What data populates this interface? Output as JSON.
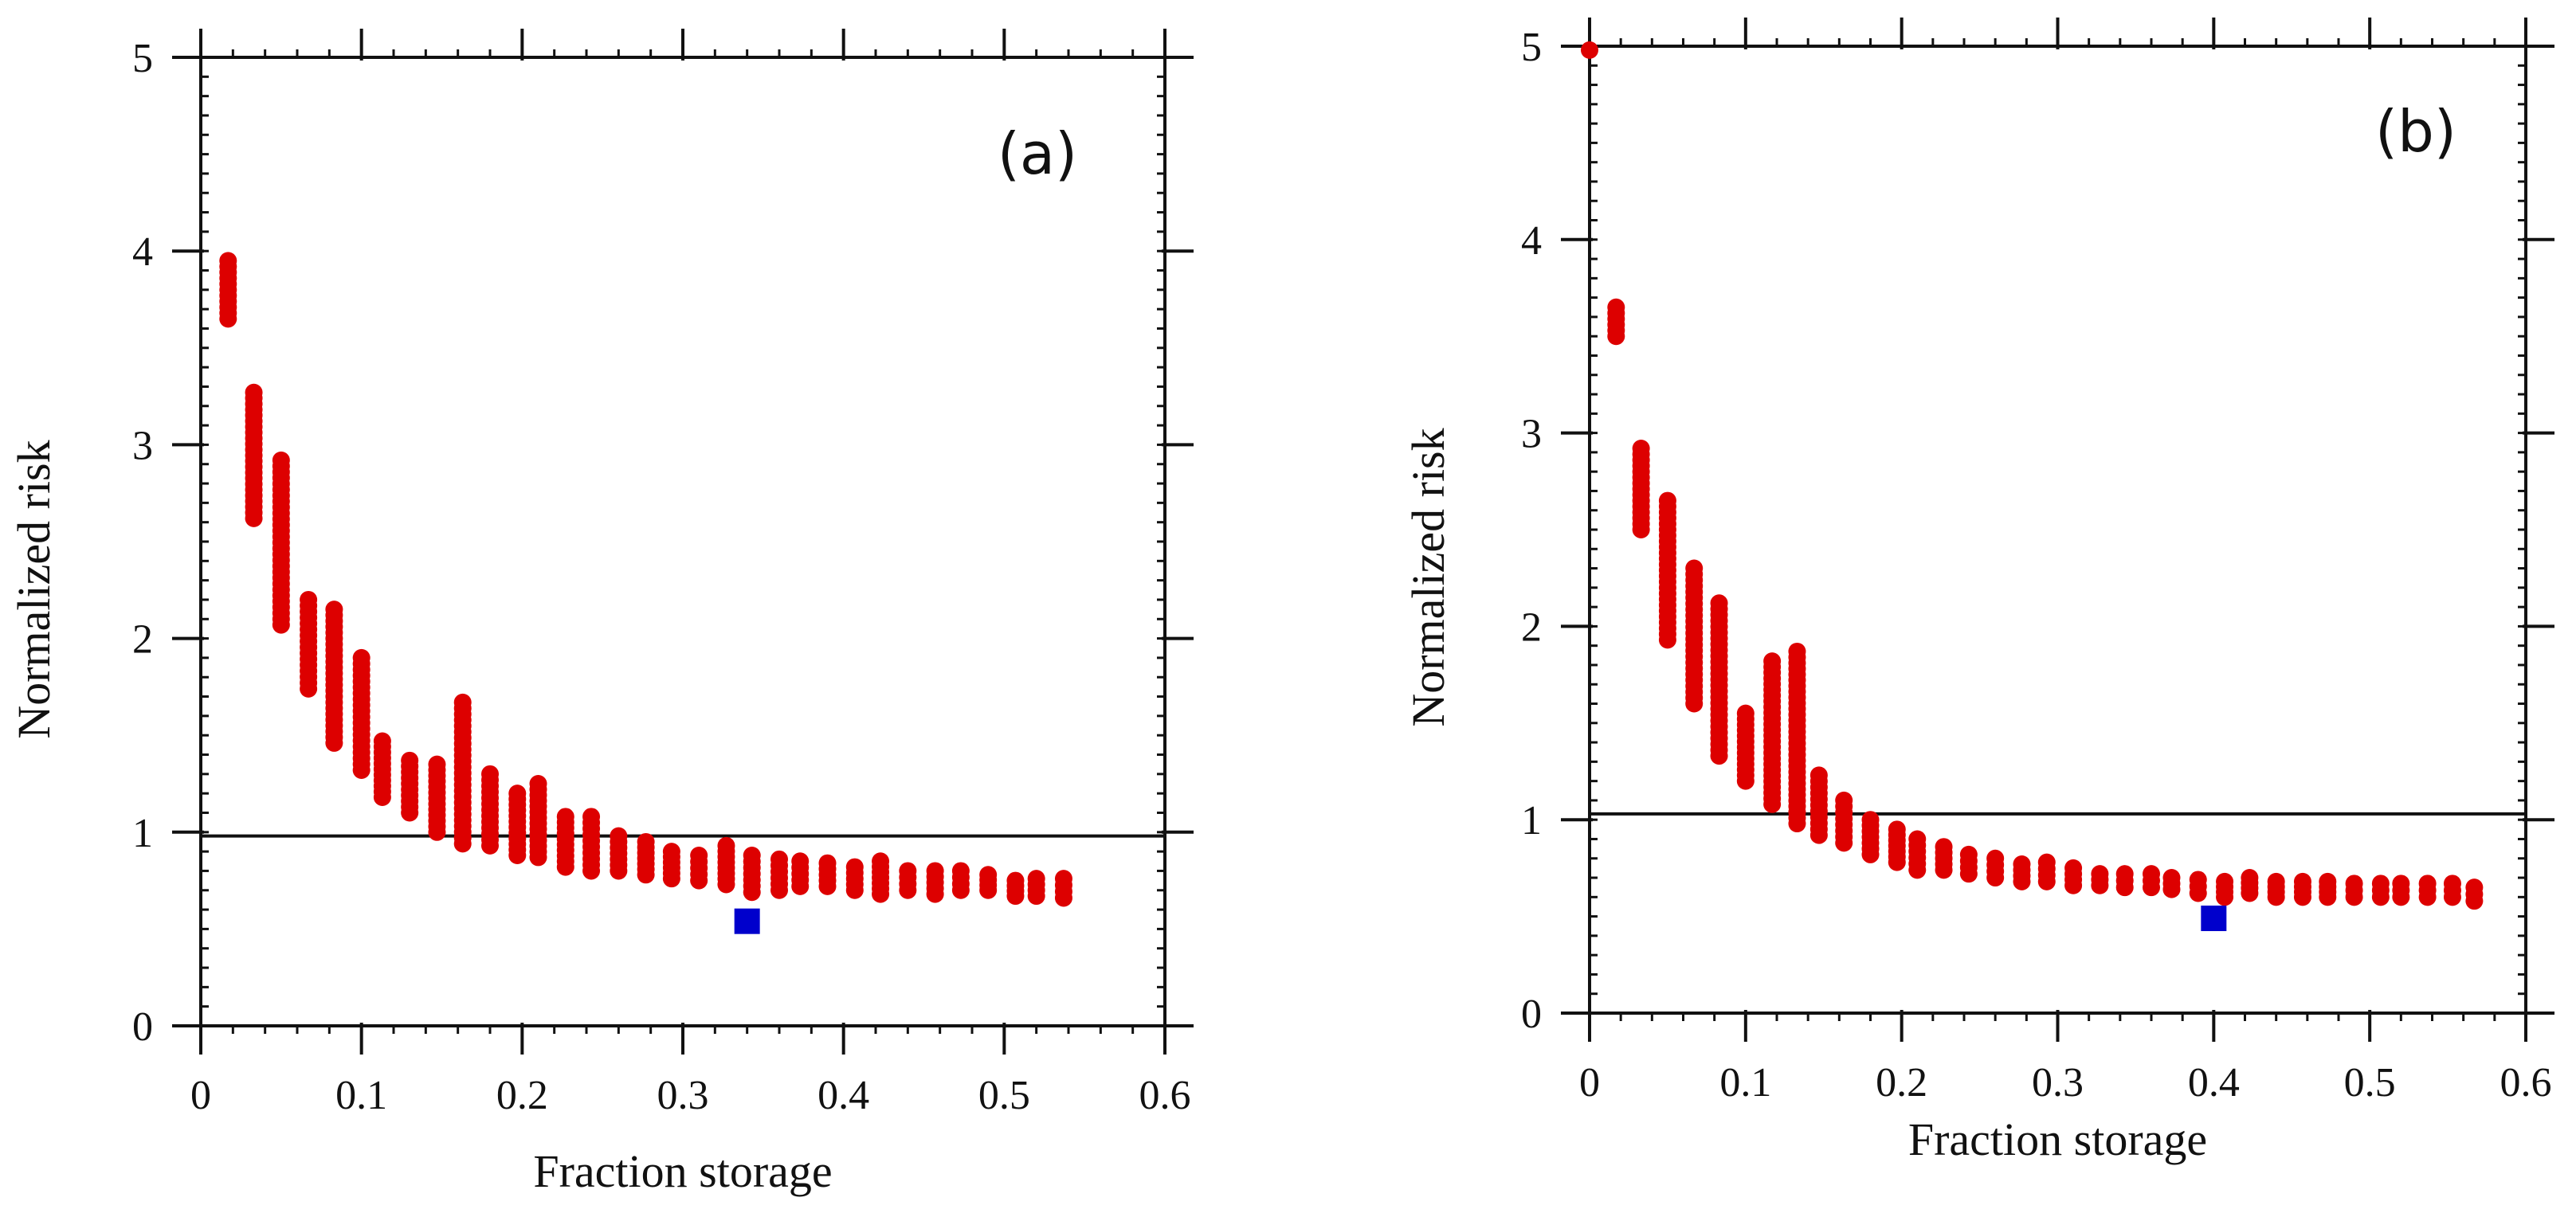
{
  "chart_data": [
    {
      "type": "scatter",
      "panel_label": "(a)",
      "xlabel": "Fraction storage",
      "ylabel": "Normalized risk",
      "xlim": [
        0,
        0.6
      ],
      "ylim": [
        0,
        5
      ],
      "xticks": [
        "0",
        "0.1",
        "0.2",
        "0.3",
        "0.4",
        "0.5",
        "0.6"
      ],
      "yticks": [
        "0",
        "1",
        "2",
        "3",
        "4",
        "5"
      ],
      "reference_line": 0.98,
      "grid": false,
      "series": [
        {
          "color": "#dd0000",
          "marker": "circle",
          "clusters": [
            {
              "x": 0.017,
              "ymin": 3.65,
              "ymax": 3.95
            },
            {
              "x": 0.033,
              "ymin": 2.62,
              "ymax": 3.27
            },
            {
              "x": 0.05,
              "ymin": 2.07,
              "ymax": 2.92
            },
            {
              "x": 0.067,
              "ymin": 1.74,
              "ymax": 2.2
            },
            {
              "x": 0.083,
              "ymin": 1.46,
              "ymax": 2.15
            },
            {
              "x": 0.1,
              "ymin": 1.32,
              "ymax": 1.9
            },
            {
              "x": 0.113,
              "ymin": 1.18,
              "ymax": 1.47
            },
            {
              "x": 0.13,
              "ymin": 1.1,
              "ymax": 1.37
            },
            {
              "x": 0.147,
              "ymin": 1.0,
              "ymax": 1.35
            },
            {
              "x": 0.163,
              "ymin": 0.94,
              "ymax": 1.67
            },
            {
              "x": 0.18,
              "ymin": 0.93,
              "ymax": 1.3
            },
            {
              "x": 0.197,
              "ymin": 0.88,
              "ymax": 1.2
            },
            {
              "x": 0.21,
              "ymin": 0.87,
              "ymax": 1.25
            },
            {
              "x": 0.227,
              "ymin": 0.82,
              "ymax": 1.08
            },
            {
              "x": 0.243,
              "ymin": 0.8,
              "ymax": 1.08
            },
            {
              "x": 0.26,
              "ymin": 0.8,
              "ymax": 0.98
            },
            {
              "x": 0.277,
              "ymin": 0.78,
              "ymax": 0.95
            },
            {
              "x": 0.293,
              "ymin": 0.76,
              "ymax": 0.9
            },
            {
              "x": 0.31,
              "ymin": 0.75,
              "ymax": 0.88
            },
            {
              "x": 0.327,
              "ymin": 0.73,
              "ymax": 0.93
            },
            {
              "x": 0.343,
              "ymin": 0.69,
              "ymax": 0.88
            },
            {
              "x": 0.36,
              "ymin": 0.7,
              "ymax": 0.86
            },
            {
              "x": 0.373,
              "ymin": 0.72,
              "ymax": 0.85
            },
            {
              "x": 0.39,
              "ymin": 0.72,
              "ymax": 0.84
            },
            {
              "x": 0.407,
              "ymin": 0.7,
              "ymax": 0.82
            },
            {
              "x": 0.423,
              "ymin": 0.68,
              "ymax": 0.85
            },
            {
              "x": 0.44,
              "ymin": 0.7,
              "ymax": 0.8
            },
            {
              "x": 0.457,
              "ymin": 0.68,
              "ymax": 0.8
            },
            {
              "x": 0.473,
              "ymin": 0.7,
              "ymax": 0.8
            },
            {
              "x": 0.49,
              "ymin": 0.7,
              "ymax": 0.78
            },
            {
              "x": 0.507,
              "ymin": 0.67,
              "ymax": 0.75
            },
            {
              "x": 0.52,
              "ymin": 0.67,
              "ymax": 0.76
            },
            {
              "x": 0.537,
              "ymin": 0.66,
              "ymax": 0.76
            }
          ]
        },
        {
          "color": "#0000cc",
          "marker": "square",
          "points": [
            {
              "x": 0.34,
              "y": 0.54
            }
          ]
        }
      ]
    },
    {
      "type": "scatter",
      "panel_label": "(b)",
      "xlabel": "Fraction storage",
      "ylabel": "Normalized risk",
      "xlim": [
        0,
        0.6
      ],
      "ylim": [
        0,
        5
      ],
      "xticks": [
        "0",
        "0.1",
        "0.2",
        "0.3",
        "0.4",
        "0.5",
        "0.6"
      ],
      "yticks": [
        "0",
        "1",
        "2",
        "3",
        "4",
        "5"
      ],
      "reference_line": 1.03,
      "grid": false,
      "series": [
        {
          "color": "#dd0000",
          "marker": "circle",
          "clusters": [
            {
              "x": 0.0,
              "ymin": 4.98,
              "ymax": 4.98
            },
            {
              "x": 0.017,
              "ymin": 3.5,
              "ymax": 3.65
            },
            {
              "x": 0.033,
              "ymin": 2.5,
              "ymax": 2.92
            },
            {
              "x": 0.05,
              "ymin": 1.93,
              "ymax": 2.65
            },
            {
              "x": 0.067,
              "ymin": 1.6,
              "ymax": 2.3
            },
            {
              "x": 0.083,
              "ymin": 1.33,
              "ymax": 2.12
            },
            {
              "x": 0.1,
              "ymin": 1.2,
              "ymax": 1.55
            },
            {
              "x": 0.117,
              "ymin": 1.08,
              "ymax": 1.82
            },
            {
              "x": 0.133,
              "ymin": 0.98,
              "ymax": 1.87
            },
            {
              "x": 0.147,
              "ymin": 0.92,
              "ymax": 1.23
            },
            {
              "x": 0.163,
              "ymin": 0.88,
              "ymax": 1.1
            },
            {
              "x": 0.18,
              "ymin": 0.82,
              "ymax": 1.0
            },
            {
              "x": 0.197,
              "ymin": 0.78,
              "ymax": 0.95
            },
            {
              "x": 0.21,
              "ymin": 0.74,
              "ymax": 0.9
            },
            {
              "x": 0.227,
              "ymin": 0.74,
              "ymax": 0.86
            },
            {
              "x": 0.243,
              "ymin": 0.72,
              "ymax": 0.82
            },
            {
              "x": 0.26,
              "ymin": 0.7,
              "ymax": 0.8
            },
            {
              "x": 0.277,
              "ymin": 0.68,
              "ymax": 0.77
            },
            {
              "x": 0.293,
              "ymin": 0.68,
              "ymax": 0.78
            },
            {
              "x": 0.31,
              "ymin": 0.66,
              "ymax": 0.75
            },
            {
              "x": 0.327,
              "ymin": 0.66,
              "ymax": 0.72
            },
            {
              "x": 0.343,
              "ymin": 0.65,
              "ymax": 0.72
            },
            {
              "x": 0.36,
              "ymin": 0.65,
              "ymax": 0.72
            },
            {
              "x": 0.373,
              "ymin": 0.64,
              "ymax": 0.7
            },
            {
              "x": 0.39,
              "ymin": 0.62,
              "ymax": 0.69
            },
            {
              "x": 0.407,
              "ymin": 0.6,
              "ymax": 0.68
            },
            {
              "x": 0.423,
              "ymin": 0.62,
              "ymax": 0.7
            },
            {
              "x": 0.44,
              "ymin": 0.6,
              "ymax": 0.68
            },
            {
              "x": 0.457,
              "ymin": 0.6,
              "ymax": 0.68
            },
            {
              "x": 0.473,
              "ymin": 0.6,
              "ymax": 0.68
            },
            {
              "x": 0.49,
              "ymin": 0.6,
              "ymax": 0.67
            },
            {
              "x": 0.507,
              "ymin": 0.6,
              "ymax": 0.67
            },
            {
              "x": 0.52,
              "ymin": 0.6,
              "ymax": 0.67
            },
            {
              "x": 0.537,
              "ymin": 0.6,
              "ymax": 0.67
            },
            {
              "x": 0.553,
              "ymin": 0.6,
              "ymax": 0.67
            },
            {
              "x": 0.567,
              "ymin": 0.58,
              "ymax": 0.65
            }
          ]
        },
        {
          "color": "#0000cc",
          "marker": "square",
          "points": [
            {
              "x": 0.4,
              "y": 0.49
            }
          ]
        }
      ]
    }
  ]
}
